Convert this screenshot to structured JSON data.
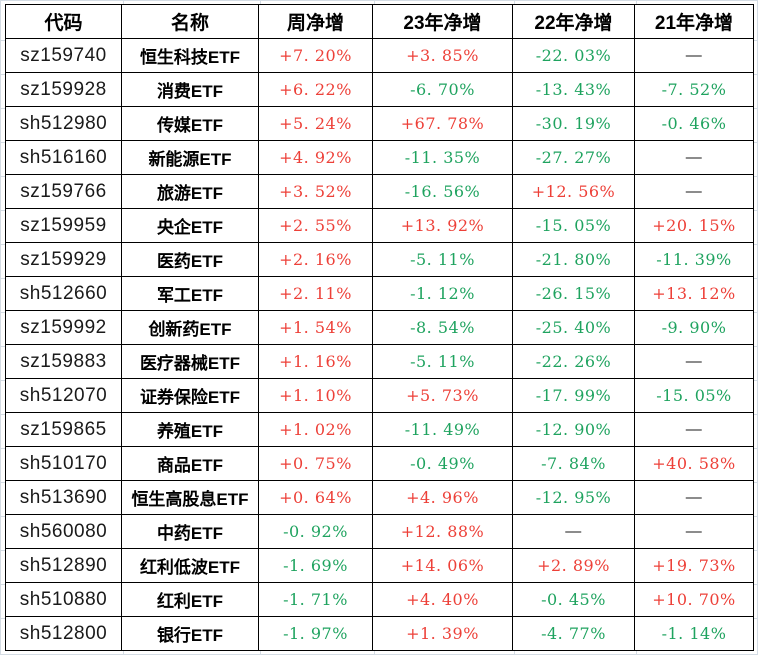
{
  "colors": {
    "positive": "#ed4038",
    "negative": "#1fa35f",
    "dash": "#1a1a1a",
    "border": "#000000",
    "gridline": "#d4dce4",
    "header_text": "#000000"
  },
  "table": {
    "columns": [
      "代码",
      "名称",
      "周净增",
      "23年净增",
      "22年净增",
      "21年净增"
    ],
    "rows": [
      [
        "sz159740",
        "恒生科技ETF",
        "+7. 20%",
        "+3. 85%",
        "-22. 03%",
        "—"
      ],
      [
        "sz159928",
        "消费ETF",
        "+6. 22%",
        "-6. 70%",
        "-13. 43%",
        "-7. 52%"
      ],
      [
        "sh512980",
        "传媒ETF",
        "+5. 24%",
        "+67. 78%",
        "-30. 19%",
        "-0. 46%"
      ],
      [
        "sh516160",
        "新能源ETF",
        "+4. 92%",
        "-11. 35%",
        "-27. 27%",
        "—"
      ],
      [
        "sz159766",
        "旅游ETF",
        "+3. 52%",
        "-16. 56%",
        "+12. 56%",
        "—"
      ],
      [
        "sz159959",
        "央企ETF",
        "+2. 55%",
        "+13. 92%",
        "-15. 05%",
        "+20. 15%"
      ],
      [
        "sz159929",
        "医药ETF",
        "+2. 16%",
        "-5. 11%",
        "-21. 80%",
        "-11. 39%"
      ],
      [
        "sh512660",
        "军工ETF",
        "+2. 11%",
        "-1. 12%",
        "-26. 15%",
        "+13. 12%"
      ],
      [
        "sz159992",
        "创新药ETF",
        "+1. 54%",
        "-8. 54%",
        "-25. 40%",
        "-9. 90%"
      ],
      [
        "sz159883",
        "医疗器械ETF",
        "+1. 16%",
        "-5. 11%",
        "-22. 26%",
        "—"
      ],
      [
        "sh512070",
        "证券保险ETF",
        "+1. 10%",
        "+5. 73%",
        "-17. 99%",
        "-15. 05%"
      ],
      [
        "sz159865",
        "养殖ETF",
        "+1. 02%",
        "-11. 49%",
        "-12. 90%",
        "—"
      ],
      [
        "sh510170",
        "商品ETF",
        "+0. 75%",
        "-0. 49%",
        "-7. 84%",
        "+40. 58%"
      ],
      [
        "sh513690",
        "恒生高股息ETF",
        "+0. 64%",
        "+4. 96%",
        "-12. 95%",
        "—"
      ],
      [
        "sh560080",
        "中药ETF",
        "-0. 92%",
        "+12. 88%",
        "—",
        "—"
      ],
      [
        "sh512890",
        "红利低波ETF",
        "-1. 69%",
        "+14. 06%",
        "+2. 89%",
        "+19. 73%"
      ],
      [
        "sh510880",
        "红利ETF",
        "-1. 71%",
        "+4. 40%",
        "-0. 45%",
        "+10. 70%"
      ],
      [
        "sh512800",
        "银行ETF",
        "-1. 97%",
        "+1. 39%",
        "-4. 77%",
        "-1. 14%"
      ]
    ]
  }
}
